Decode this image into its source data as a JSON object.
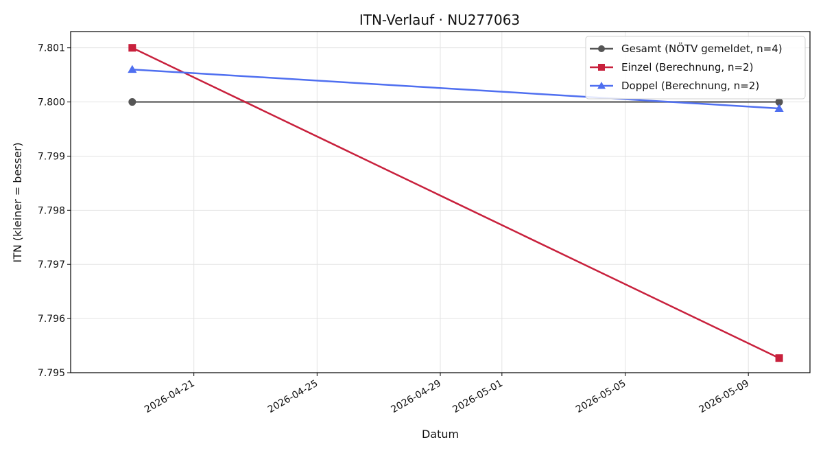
{
  "chart_data": {
    "type": "line",
    "title": "ITN-Verlauf · NU277063",
    "xlabel": "Datum",
    "ylabel": "ITN  (kleiner = besser)",
    "x_ticks": [
      "2026-04-21",
      "2026-04-25",
      "2026-04-29",
      "2026-05-01",
      "2026-05-05",
      "2026-05-09"
    ],
    "y_ticks": [
      "7.795",
      "7.796",
      "7.797",
      "7.798",
      "7.799",
      "7.800",
      "7.801"
    ],
    "xlim": [
      "2026-04-17",
      "2026-05-11"
    ],
    "ylim": [
      7.795,
      7.8013
    ],
    "grid": true,
    "legend_position": "top-right",
    "series": [
      {
        "name": "Gesamt (NÖTV gemeldet, n=4)",
        "color": "#555555",
        "marker": "circle",
        "points": [
          {
            "x": "2026-04-19",
            "y": 7.8
          },
          {
            "x": "2026-05-10",
            "y": 7.8
          }
        ]
      },
      {
        "name": "Einzel (Berechnung, n=2)",
        "color": "#c8203c",
        "marker": "square",
        "points": [
          {
            "x": "2026-04-19",
            "y": 7.801
          },
          {
            "x": "2026-05-10",
            "y": 7.79527
          }
        ]
      },
      {
        "name": "Doppel (Berechnung, n=2)",
        "color": "#4f6ff0",
        "marker": "triangle",
        "points": [
          {
            "x": "2026-04-19",
            "y": 7.8006
          },
          {
            "x": "2026-05-10",
            "y": 7.79988
          }
        ]
      }
    ]
  }
}
